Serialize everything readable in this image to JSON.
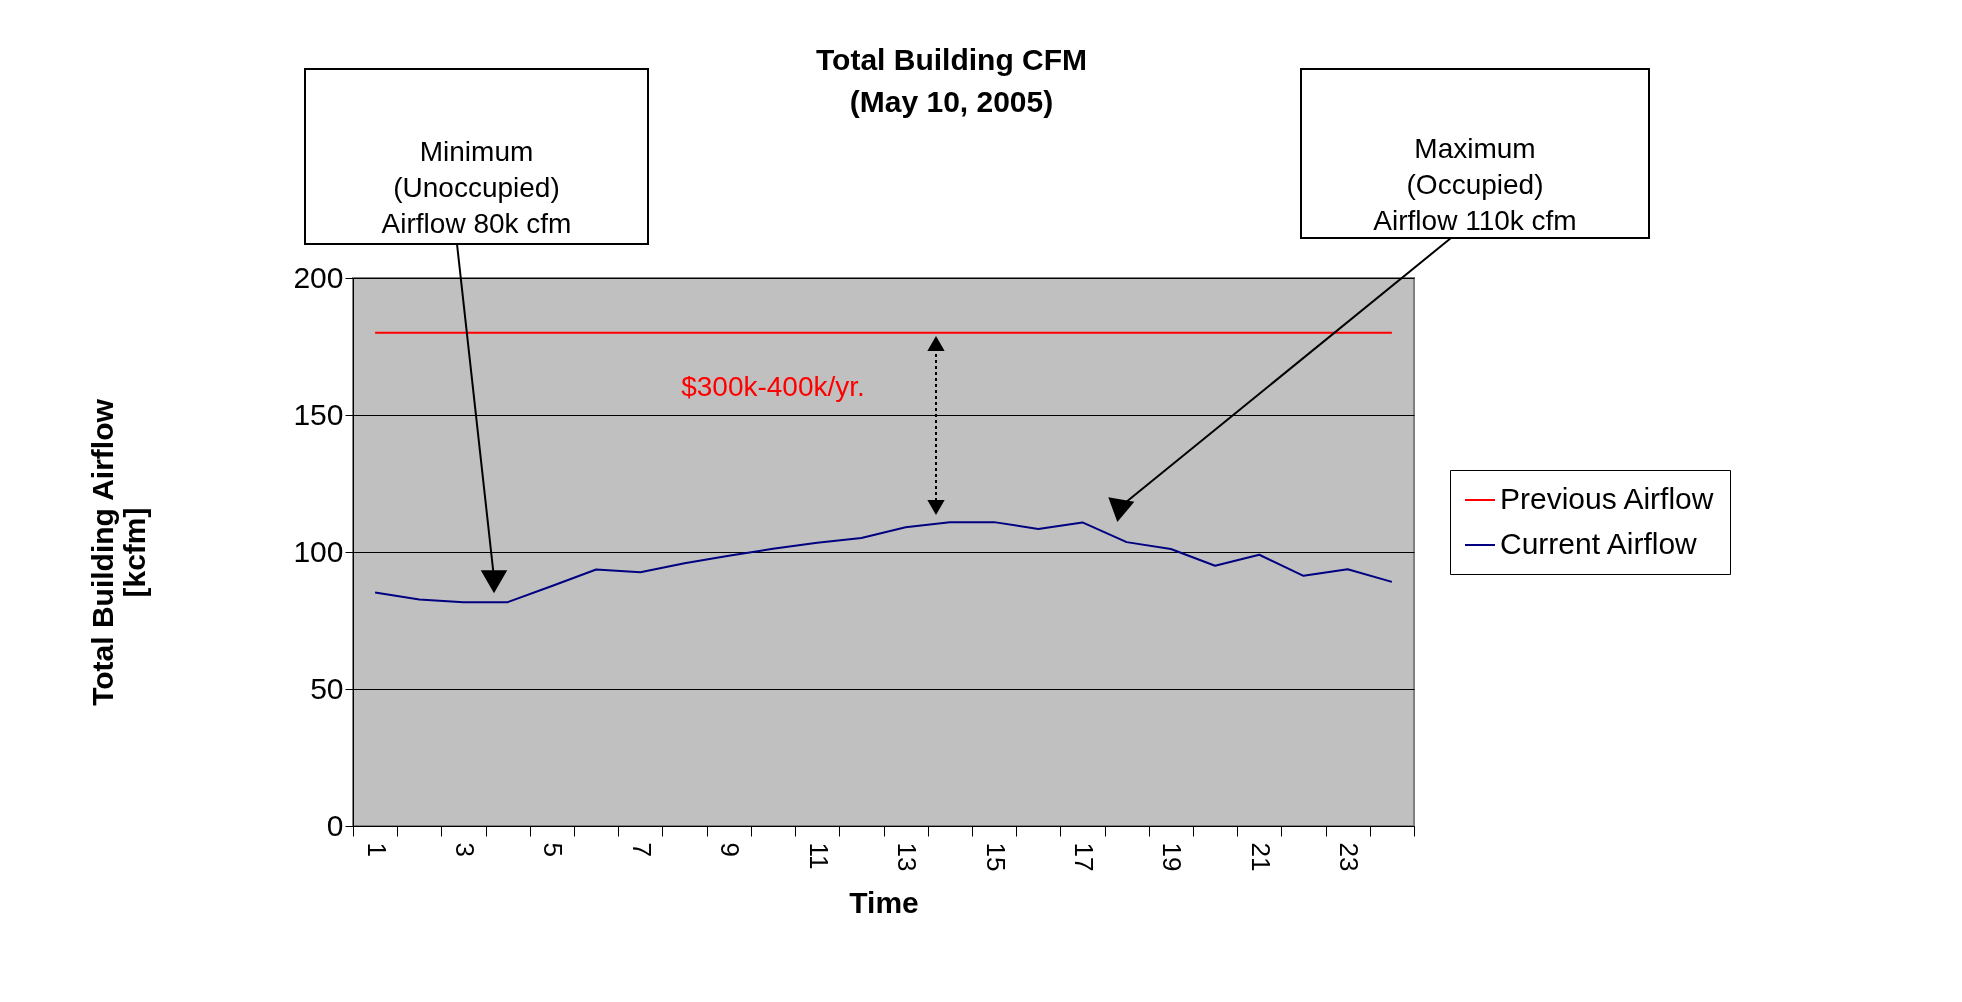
{
  "chart_data": {
    "type": "line",
    "title": "Total Building CFM\n(May 10, 2005)",
    "xlabel": "Time",
    "ylabel": "Total Building Airflow\n[kcfm]",
    "categories": [
      "1",
      null,
      "3",
      null,
      "5",
      null,
      "7",
      null,
      "9",
      null,
      "11",
      null,
      "13",
      null,
      "15",
      null,
      "17",
      null,
      "19",
      null,
      "21",
      null,
      "23",
      null
    ],
    "series": [
      {
        "name": "Previous Airflow",
        "color": "#ff0000",
        "values": [
          180,
          180,
          180,
          180,
          180,
          180,
          180,
          180,
          180,
          180,
          180,
          180,
          180,
          180,
          180,
          180,
          180,
          180,
          180,
          180,
          180,
          180,
          180,
          180
        ]
      },
      {
        "name": "Current Airflow",
        "color": "#000080",
        "values": [
          85.2,
          82.7,
          81.7,
          81.7,
          87.6,
          93.6,
          92.6,
          95.9,
          98.6,
          101.2,
          103.4,
          105.1,
          109,
          110.9,
          110.9,
          108.4,
          110.8,
          103.6,
          101.1,
          95,
          99,
          91.3,
          93.7,
          89.1
        ]
      }
    ],
    "ylim": [
      0,
      200
    ],
    "yticks": [
      0,
      50,
      100,
      150,
      200
    ],
    "grid": "y",
    "legend": "right",
    "line_style": "solid",
    "annotations": [
      "Minimum\n(Unoccupied)\nAirflow 80k cfm",
      "Maximum\n(Occupied)\nAirflow 110k cfm",
      "$300k-400k/yr."
    ]
  }
}
